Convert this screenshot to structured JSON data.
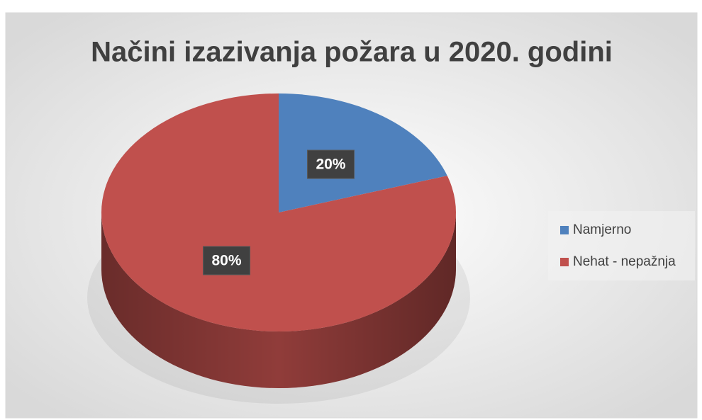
{
  "chart_data": {
    "type": "pie",
    "title": "Načini izazivanja požara u 2020. godini",
    "categories": [
      "Namjerno",
      "Nehat - nepažnja"
    ],
    "values": [
      20,
      80
    ],
    "value_labels": [
      "20%",
      "80%"
    ],
    "colors": [
      "#4f81bd",
      "#c0504d"
    ],
    "legend": "right",
    "three_d": true
  }
}
